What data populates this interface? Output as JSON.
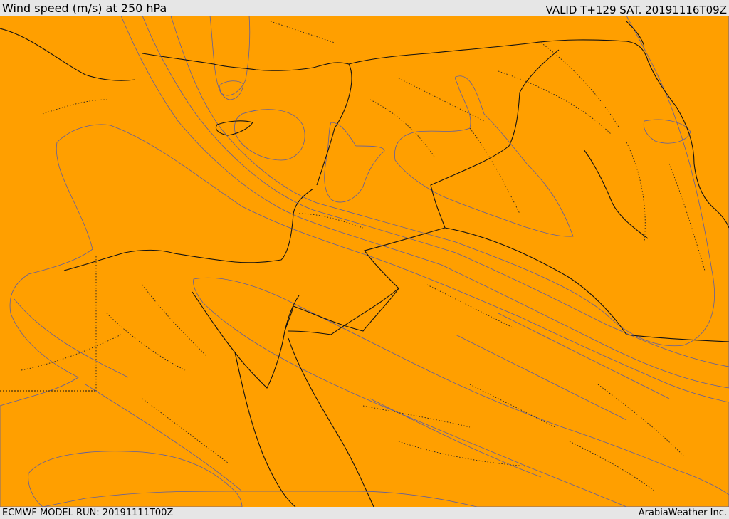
{
  "header": {
    "title": "Wind speed (m/s) at 250 hPa",
    "valid": "VALID T+129 SAT. 20191116T09Z"
  },
  "footer": {
    "model_run": "ECMWF MODEL RUN: 20191111T00Z",
    "credit": "ArabiaWeather Inc."
  },
  "colors": {
    "white": "#ffffff",
    "peach": "#ffdfa8",
    "yellow": "#ffff00",
    "gold": "#ffe000",
    "amber": "#ffbf00",
    "orange": "#ff9f00",
    "dark_orange": "#ff6000",
    "red_orange": "#ff4000",
    "contour": "#5e5ea0",
    "border": "#111111"
  }
}
